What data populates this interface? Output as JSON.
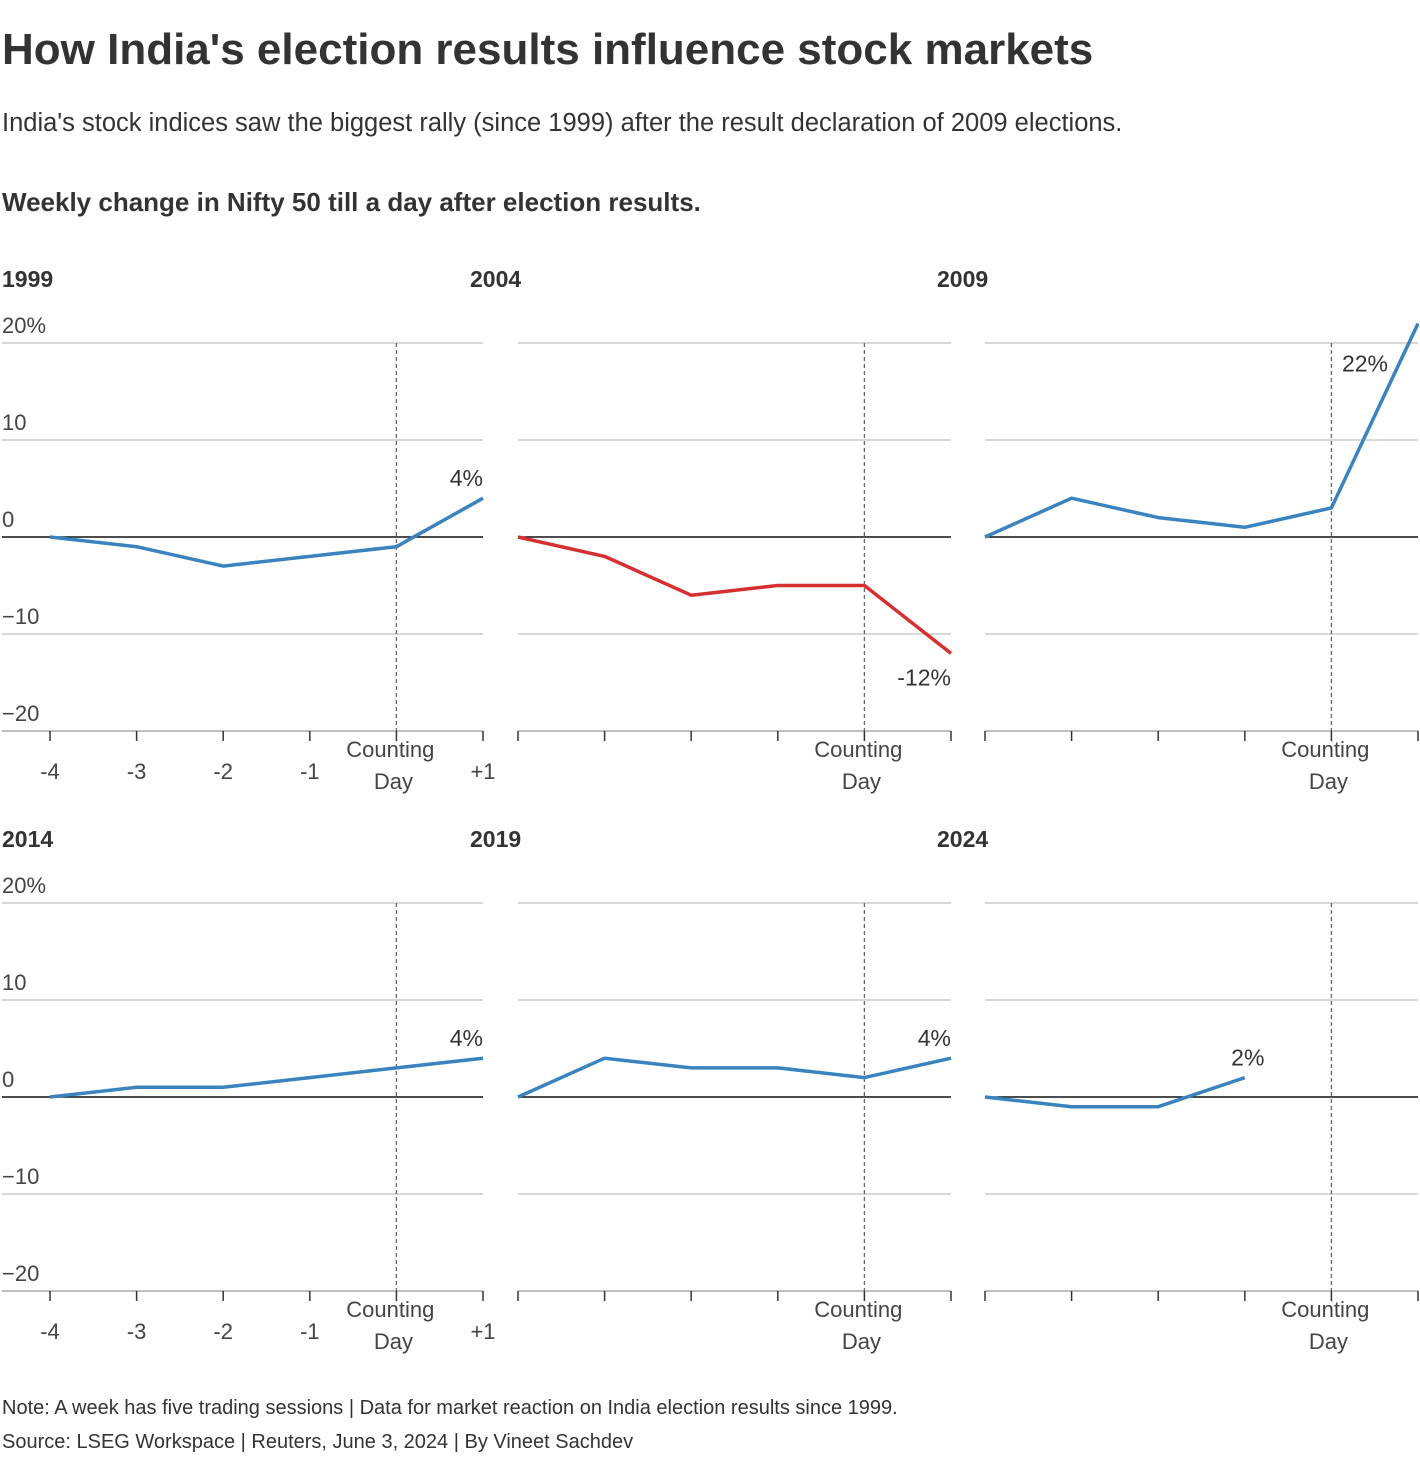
{
  "header": {
    "title": "How India's election results influence stock markets",
    "subtitle": "India's stock indices saw the biggest rally (since 1999) after the result declaration of 2009 elections.",
    "chart_heading": "Weekly change in Nifty 50 till a day after election results."
  },
  "footer": {
    "note": "Note: A week has five trading sessions | Data for market reaction on India election results since 1999.",
    "source": "Source: LSEG Workspace | Reuters, June 3, 2024 | By Vineet Sachdev"
  },
  "chart_data": [
    {
      "type": "line",
      "title": "1999",
      "title_color": "#2f78b3",
      "color": "#3a83bf",
      "label_color": "#5b97c6",
      "label_position": "above",
      "categories": [
        "-4",
        "-3",
        "-2",
        "-1",
        "Counting Day",
        "+1"
      ],
      "reference_line": "Counting Day",
      "values": [
        0,
        -1,
        -3,
        -2,
        -1,
        4
      ],
      "value_labels": [
        null,
        null,
        null,
        null,
        null,
        "4%"
      ],
      "ylim": [
        -20,
        20
      ],
      "yticks": [
        {
          "value": -20,
          "label": "−20"
        },
        {
          "value": -10,
          "label": "−10"
        },
        0,
        10,
        {
          "value": 20,
          "label": "20%"
        }
      ],
      "ytick_labels": true,
      "grid": true
    },
    {
      "type": "line",
      "title": "2004",
      "title_color": "#d62f2f",
      "color": "#d62f2f",
      "label_color": "#d62f2f",
      "label_position": "below",
      "categories": [
        null,
        null,
        null,
        null,
        "Counting Day",
        null
      ],
      "reference_line": "Counting Day",
      "values": [
        0,
        -2,
        -6,
        -5,
        -5,
        -12
      ],
      "value_labels": [
        null,
        null,
        null,
        null,
        null,
        "-12%"
      ],
      "ylim": [
        -20,
        20
      ],
      "yticks": [
        -20,
        -10,
        0,
        10,
        20
      ],
      "ytick_labels": false,
      "grid": true
    },
    {
      "type": "line",
      "title": "2009",
      "title_color": "#2f78b3",
      "color": "#3a83bf",
      "label_color": "#5b97c6",
      "label_position": "left",
      "categories": [
        null,
        null,
        null,
        null,
        "Counting Day",
        null
      ],
      "reference_line": "Counting Day",
      "values": [
        0,
        4,
        2,
        1,
        3,
        22
      ],
      "value_labels": [
        null,
        null,
        null,
        null,
        null,
        "22%"
      ],
      "ylim": [
        -20,
        20
      ],
      "yticks": [
        -20,
        -10,
        0,
        10,
        20
      ],
      "ytick_labels": false,
      "grid": true
    },
    {
      "type": "line",
      "title": "2014",
      "title_color": "#2f78b3",
      "color": "#3a83bf",
      "label_color": "#5b97c6",
      "label_position": "above",
      "categories": [
        "-4",
        "-3",
        "-2",
        "-1",
        "Counting Day",
        "+1"
      ],
      "reference_line": "Counting Day",
      "values": [
        0,
        1,
        1,
        2,
        3,
        4
      ],
      "value_labels": [
        null,
        null,
        null,
        null,
        null,
        "4%"
      ],
      "ylim": [
        -20,
        20
      ],
      "yticks": [
        {
          "value": -20,
          "label": "−20"
        },
        {
          "value": -10,
          "label": "−10"
        },
        0,
        10,
        {
          "value": 20,
          "label": "20%"
        }
      ],
      "ytick_labels": true,
      "grid": true
    },
    {
      "type": "line",
      "title": "2019",
      "title_color": "#2f78b3",
      "color": "#3a83bf",
      "label_color": "#5b97c6",
      "label_position": "above",
      "categories": [
        null,
        null,
        null,
        null,
        "Counting Day",
        null
      ],
      "reference_line": "Counting Day",
      "values": [
        0,
        4,
        3,
        3,
        2,
        4
      ],
      "value_labels": [
        null,
        null,
        null,
        null,
        null,
        "4%"
      ],
      "ylim": [
        -20,
        20
      ],
      "yticks": [
        -20,
        -10,
        0,
        10,
        20
      ],
      "ytick_labels": false,
      "grid": true
    },
    {
      "type": "line",
      "title": "2024",
      "title_color": "#2f78b3",
      "color": "#3a83bf",
      "label_color": "#5b97c6",
      "label_position": "above",
      "categories": [
        null,
        null,
        null,
        null,
        "Counting Day",
        null
      ],
      "reference_line": "Counting Day",
      "values": [
        0,
        -1,
        -1,
        2,
        null,
        null
      ],
      "value_labels": [
        null,
        null,
        null,
        "2%",
        null,
        null
      ],
      "ylim": [
        -20,
        20
      ],
      "yticks": [
        -20,
        -10,
        0,
        10,
        20
      ],
      "ytick_labels": false,
      "grid": true
    }
  ]
}
